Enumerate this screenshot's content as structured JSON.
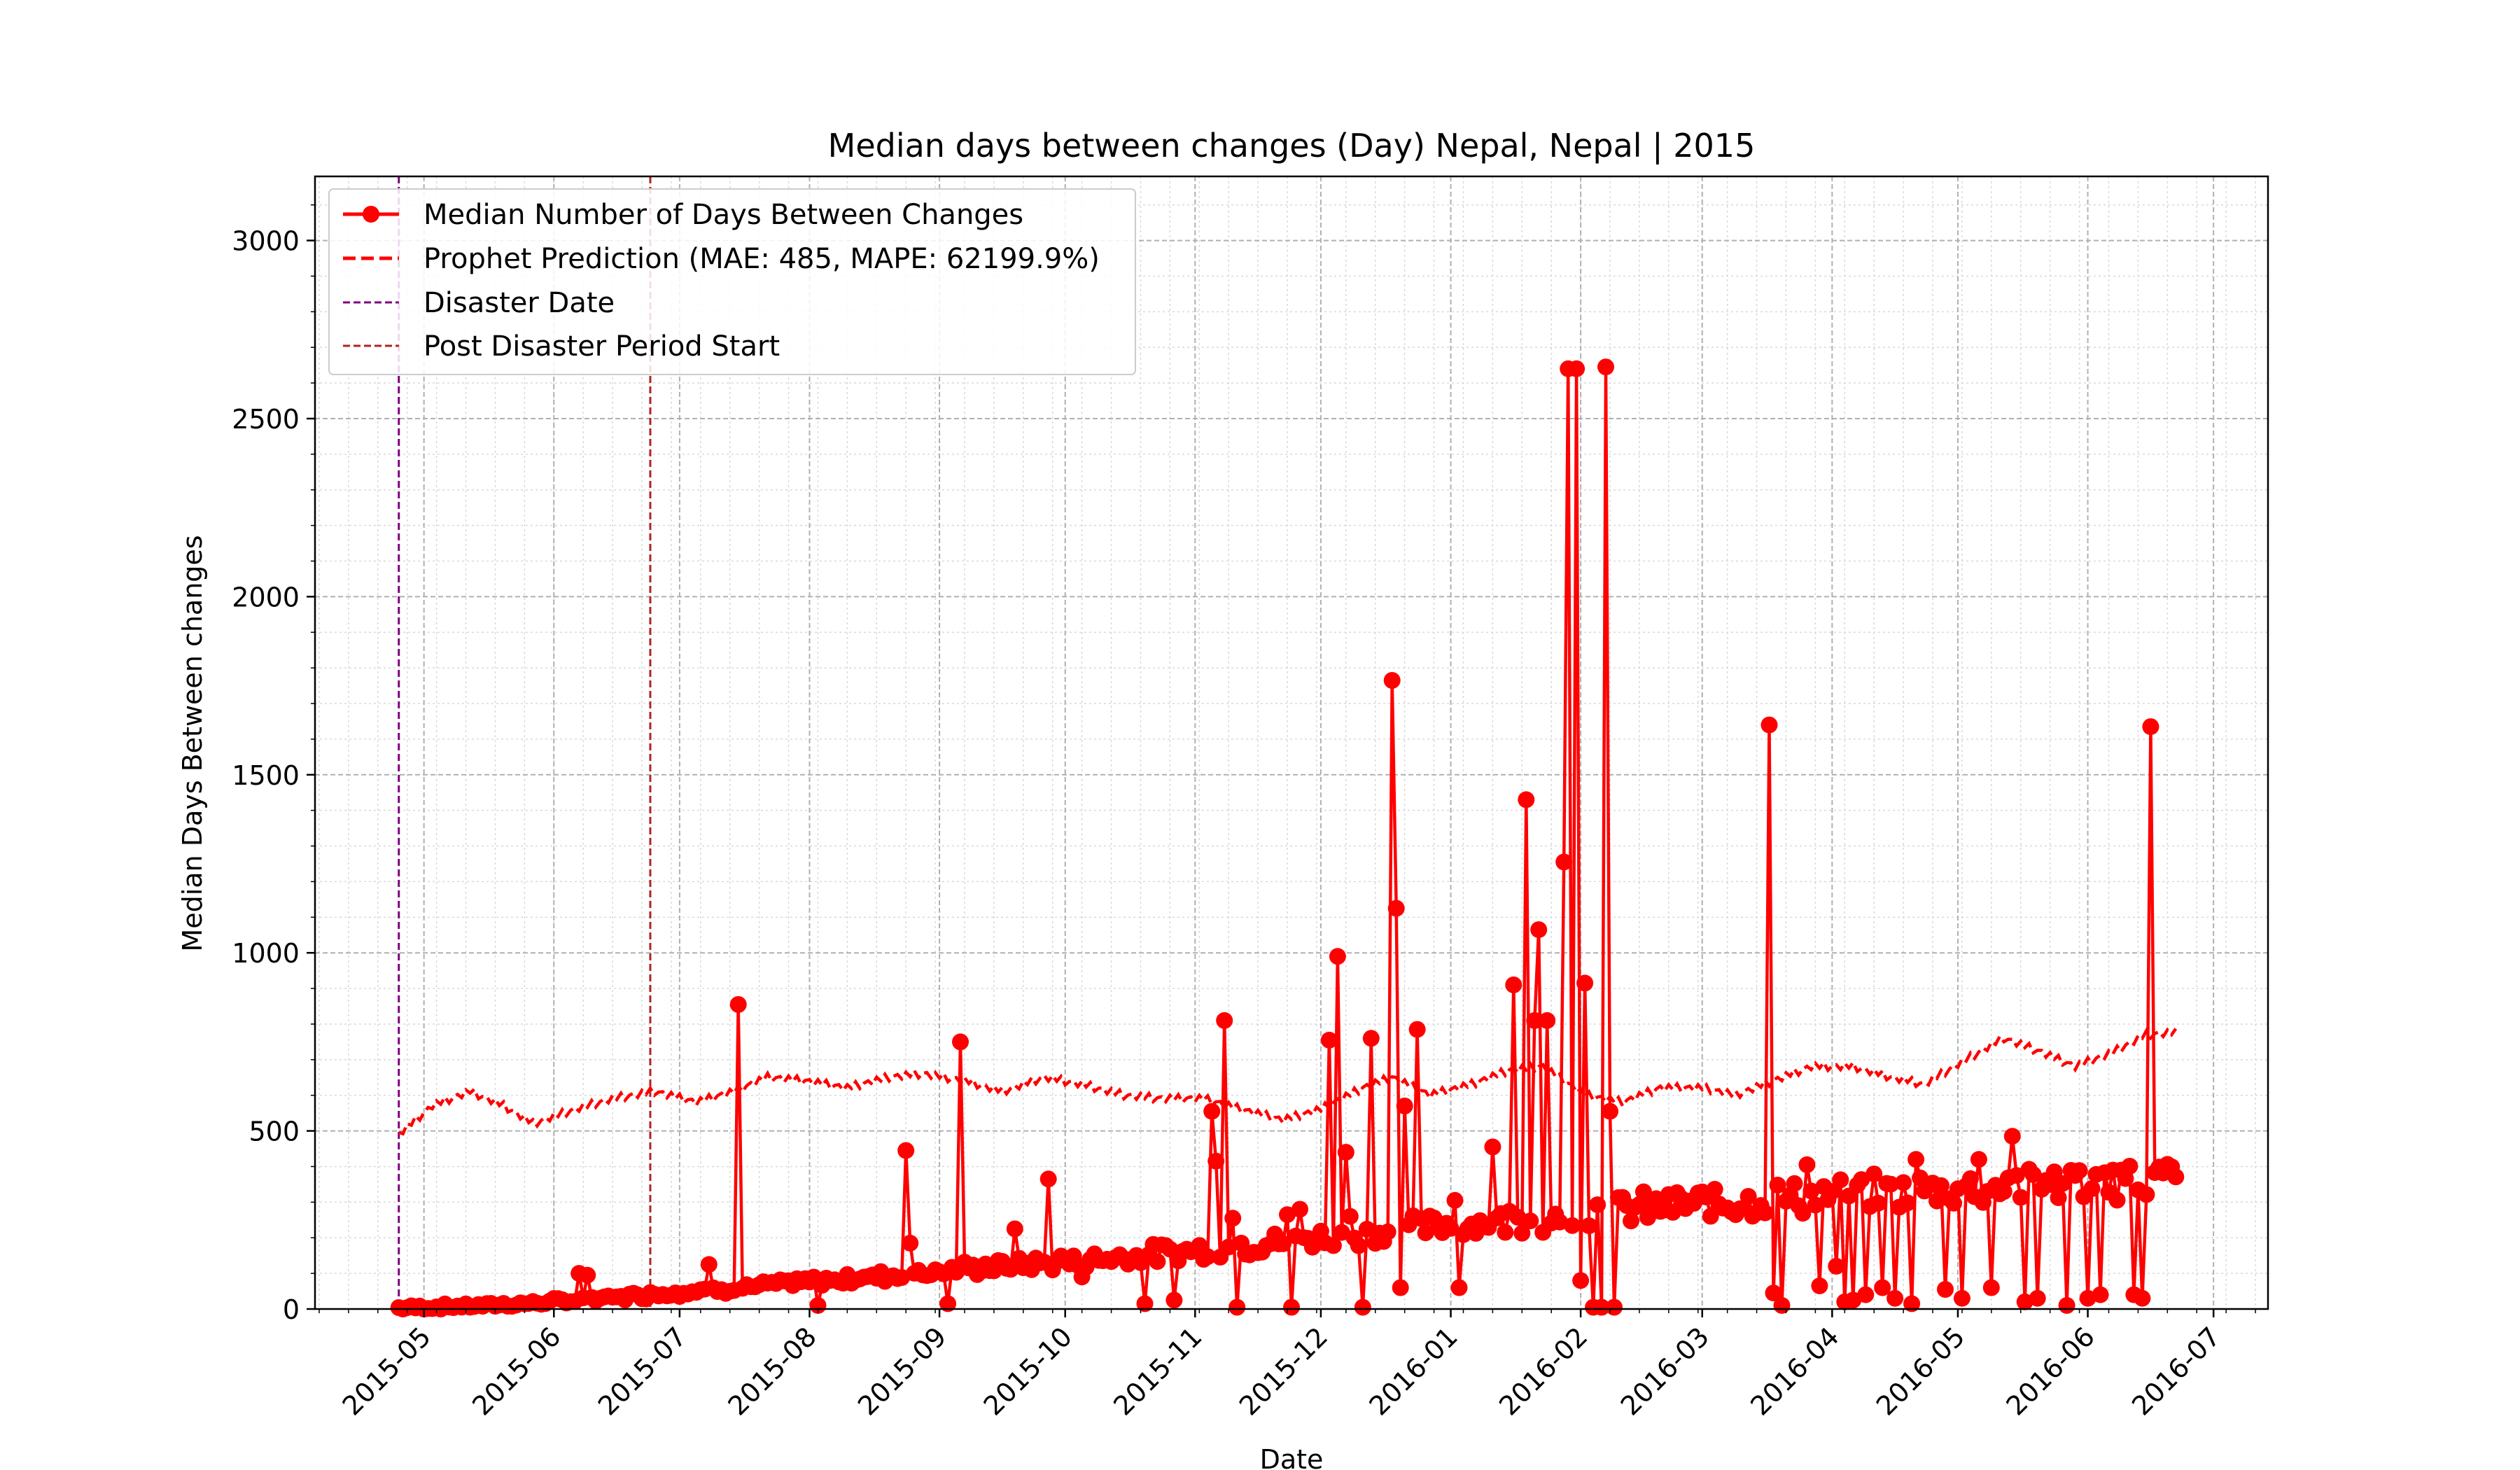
{
  "chart_data": {
    "type": "line",
    "title": "Median days between changes (Day) Nepal, Nepal | 2015",
    "xlabel": "Date",
    "ylabel": "Median Days Between changes",
    "xlim": [
      "2015-04-05",
      "2016-07-14"
    ],
    "ylim": [
      0,
      3180
    ],
    "grid": true,
    "legend_position": "top-left",
    "x_ticks": [
      "2015-05",
      "2015-06",
      "2015-07",
      "2015-08",
      "2015-09",
      "2015-10",
      "2015-11",
      "2015-12",
      "2016-01",
      "2016-02",
      "2016-03",
      "2016-04",
      "2016-05",
      "2016-06",
      "2016-07"
    ],
    "y_ticks": [
      0,
      500,
      1000,
      1500,
      2000,
      2500,
      3000
    ],
    "series": [
      {
        "name": "Median Number of Days Between Changes",
        "color": "#ff0000",
        "style": "solid",
        "marker": "circle",
        "anchors": [
          [
            "2015-04-25",
            3
          ],
          [
            "2015-05-10",
            8
          ],
          [
            "2015-05-25",
            15
          ],
          [
            "2015-06-10",
            28
          ],
          [
            "2015-06-25",
            42
          ],
          [
            "2015-07-10",
            55
          ],
          [
            "2015-07-25",
            70
          ],
          [
            "2015-08-10",
            85
          ],
          [
            "2015-08-25",
            100
          ],
          [
            "2015-09-10",
            115
          ],
          [
            "2015-09-25",
            128
          ],
          [
            "2015-10-10",
            142
          ],
          [
            "2015-10-25",
            158
          ],
          [
            "2015-11-10",
            175
          ],
          [
            "2015-11-25",
            192
          ],
          [
            "2015-12-10",
            210
          ],
          [
            "2015-12-25",
            228
          ],
          [
            "2016-01-10",
            245
          ],
          [
            "2016-01-25",
            262
          ],
          [
            "2016-02-10",
            278
          ],
          [
            "2016-02-25",
            292
          ],
          [
            "2016-03-10",
            302
          ],
          [
            "2016-03-25",
            315
          ],
          [
            "2016-04-10",
            325
          ],
          [
            "2016-04-25",
            335
          ],
          [
            "2016-05-10",
            345
          ],
          [
            "2016-05-25",
            352
          ],
          [
            "2016-06-10",
            360
          ],
          [
            "2016-06-22",
            368
          ]
        ],
        "spikes": [
          [
            "2015-06-07",
            100
          ],
          [
            "2015-06-09",
            95
          ],
          [
            "2015-07-08",
            125
          ],
          [
            "2015-07-15",
            855
          ],
          [
            "2015-08-24",
            445
          ],
          [
            "2015-08-25",
            185
          ],
          [
            "2015-09-06",
            750
          ],
          [
            "2015-09-19",
            225
          ],
          [
            "2015-09-27",
            365
          ],
          [
            "2015-11-05",
            555
          ],
          [
            "2015-11-06",
            415
          ],
          [
            "2015-11-08",
            810
          ],
          [
            "2015-11-10",
            255
          ],
          [
            "2015-11-23",
            265
          ],
          [
            "2015-11-26",
            280
          ],
          [
            "2015-12-03",
            755
          ],
          [
            "2015-12-05",
            990
          ],
          [
            "2015-12-07",
            440
          ],
          [
            "2015-12-08",
            260
          ],
          [
            "2015-12-13",
            760
          ],
          [
            "2015-12-18",
            1765
          ],
          [
            "2015-12-19",
            1125
          ],
          [
            "2015-12-21",
            570
          ],
          [
            "2015-12-24",
            785
          ],
          [
            "2016-01-02",
            305
          ],
          [
            "2016-01-11",
            455
          ],
          [
            "2016-01-16",
            910
          ],
          [
            "2016-01-19",
            1430
          ],
          [
            "2016-01-21",
            810
          ],
          [
            "2016-01-22",
            1065
          ],
          [
            "2016-01-24",
            810
          ],
          [
            "2016-01-28",
            1255
          ],
          [
            "2016-01-29",
            2640
          ],
          [
            "2016-01-31",
            2640
          ],
          [
            "2016-02-02",
            915
          ],
          [
            "2016-02-07",
            2645
          ],
          [
            "2016-02-08",
            555
          ],
          [
            "2016-03-17",
            1640
          ],
          [
            "2016-03-26",
            405
          ],
          [
            "2016-04-21",
            420
          ],
          [
            "2016-05-06",
            420
          ],
          [
            "2016-05-14",
            485
          ],
          [
            "2016-05-15",
            375
          ],
          [
            "2016-05-24",
            385
          ],
          [
            "2016-05-29",
            375
          ],
          [
            "2016-06-07",
            390
          ],
          [
            "2016-06-09",
            390
          ],
          [
            "2016-06-16",
            1635
          ]
        ],
        "dips": [
          [
            "2015-08-03",
            10
          ],
          [
            "2015-09-03",
            15
          ],
          [
            "2015-10-05",
            90
          ],
          [
            "2015-10-20",
            15
          ],
          [
            "2015-10-27",
            25
          ],
          [
            "2015-11-11",
            5
          ],
          [
            "2015-11-24",
            5
          ],
          [
            "2015-12-11",
            5
          ],
          [
            "2015-12-20",
            60
          ],
          [
            "2016-01-03",
            60
          ],
          [
            "2016-02-01",
            80
          ],
          [
            "2016-02-04",
            5
          ],
          [
            "2016-02-06",
            5
          ],
          [
            "2016-02-09",
            5
          ],
          [
            "2016-03-18",
            45
          ],
          [
            "2016-03-20",
            10
          ],
          [
            "2016-03-29",
            65
          ],
          [
            "2016-04-02",
            120
          ],
          [
            "2016-04-04",
            20
          ],
          [
            "2016-04-06",
            25
          ],
          [
            "2016-04-09",
            40
          ],
          [
            "2016-04-13",
            60
          ],
          [
            "2016-04-16",
            30
          ],
          [
            "2016-04-20",
            15
          ],
          [
            "2016-04-28",
            55
          ],
          [
            "2016-05-02",
            30
          ],
          [
            "2016-05-09",
            60
          ],
          [
            "2016-05-17",
            20
          ],
          [
            "2016-05-20",
            30
          ],
          [
            "2016-05-27",
            10
          ],
          [
            "2016-06-01",
            30
          ],
          [
            "2016-06-04",
            40
          ],
          [
            "2016-06-12",
            40
          ],
          [
            "2016-06-14",
            30
          ]
        ]
      },
      {
        "name": "Prophet Prediction (MAE: 485, MAPE: 62199.9%)",
        "color": "#ff0000",
        "style": "dashed",
        "anchors": [
          [
            "2015-04-25",
            490
          ],
          [
            "2015-05-03",
            570
          ],
          [
            "2015-05-12",
            610
          ],
          [
            "2015-05-20",
            570
          ],
          [
            "2015-05-27",
            520
          ],
          [
            "2015-06-06",
            560
          ],
          [
            "2015-06-15",
            590
          ],
          [
            "2015-06-25",
            610
          ],
          [
            "2015-07-05",
            580
          ],
          [
            "2015-07-14",
            610
          ],
          [
            "2015-07-22",
            650
          ],
          [
            "2015-07-31",
            640
          ],
          [
            "2015-08-10",
            620
          ],
          [
            "2015-08-20",
            650
          ],
          [
            "2015-08-28",
            660
          ],
          [
            "2015-09-07",
            640
          ],
          [
            "2015-09-16",
            610
          ],
          [
            "2015-09-26",
            650
          ],
          [
            "2015-10-05",
            630
          ],
          [
            "2015-10-15",
            600
          ],
          [
            "2015-10-24",
            590
          ],
          [
            "2015-11-03",
            590
          ],
          [
            "2015-11-12",
            560
          ],
          [
            "2015-11-22",
            530
          ],
          [
            "2015-12-01",
            560
          ],
          [
            "2015-12-11",
            620
          ],
          [
            "2015-12-18",
            650
          ],
          [
            "2015-12-27",
            600
          ],
          [
            "2016-01-06",
            630
          ],
          [
            "2016-01-15",
            670
          ],
          [
            "2016-01-23",
            680
          ],
          [
            "2016-02-02",
            600
          ],
          [
            "2016-02-11",
            580
          ],
          [
            "2016-02-20",
            620
          ],
          [
            "2016-03-01",
            620
          ],
          [
            "2016-03-09",
            600
          ],
          [
            "2016-03-18",
            640
          ],
          [
            "2016-03-27",
            680
          ],
          [
            "2016-04-06",
            680
          ],
          [
            "2016-04-15",
            650
          ],
          [
            "2016-04-23",
            630
          ],
          [
            "2016-05-03",
            700
          ],
          [
            "2016-05-12",
            760
          ],
          [
            "2016-05-21",
            720
          ],
          [
            "2016-05-29",
            680
          ],
          [
            "2016-06-07",
            720
          ],
          [
            "2016-06-15",
            770
          ],
          [
            "2016-06-22",
            775
          ]
        ]
      }
    ],
    "vlines": [
      {
        "name": "Disaster Date",
        "date": "2015-04-25",
        "color": "#800080"
      },
      {
        "name": "Post Disaster Period Start",
        "date": "2015-06-24",
        "color": "#b22222"
      }
    ]
  }
}
